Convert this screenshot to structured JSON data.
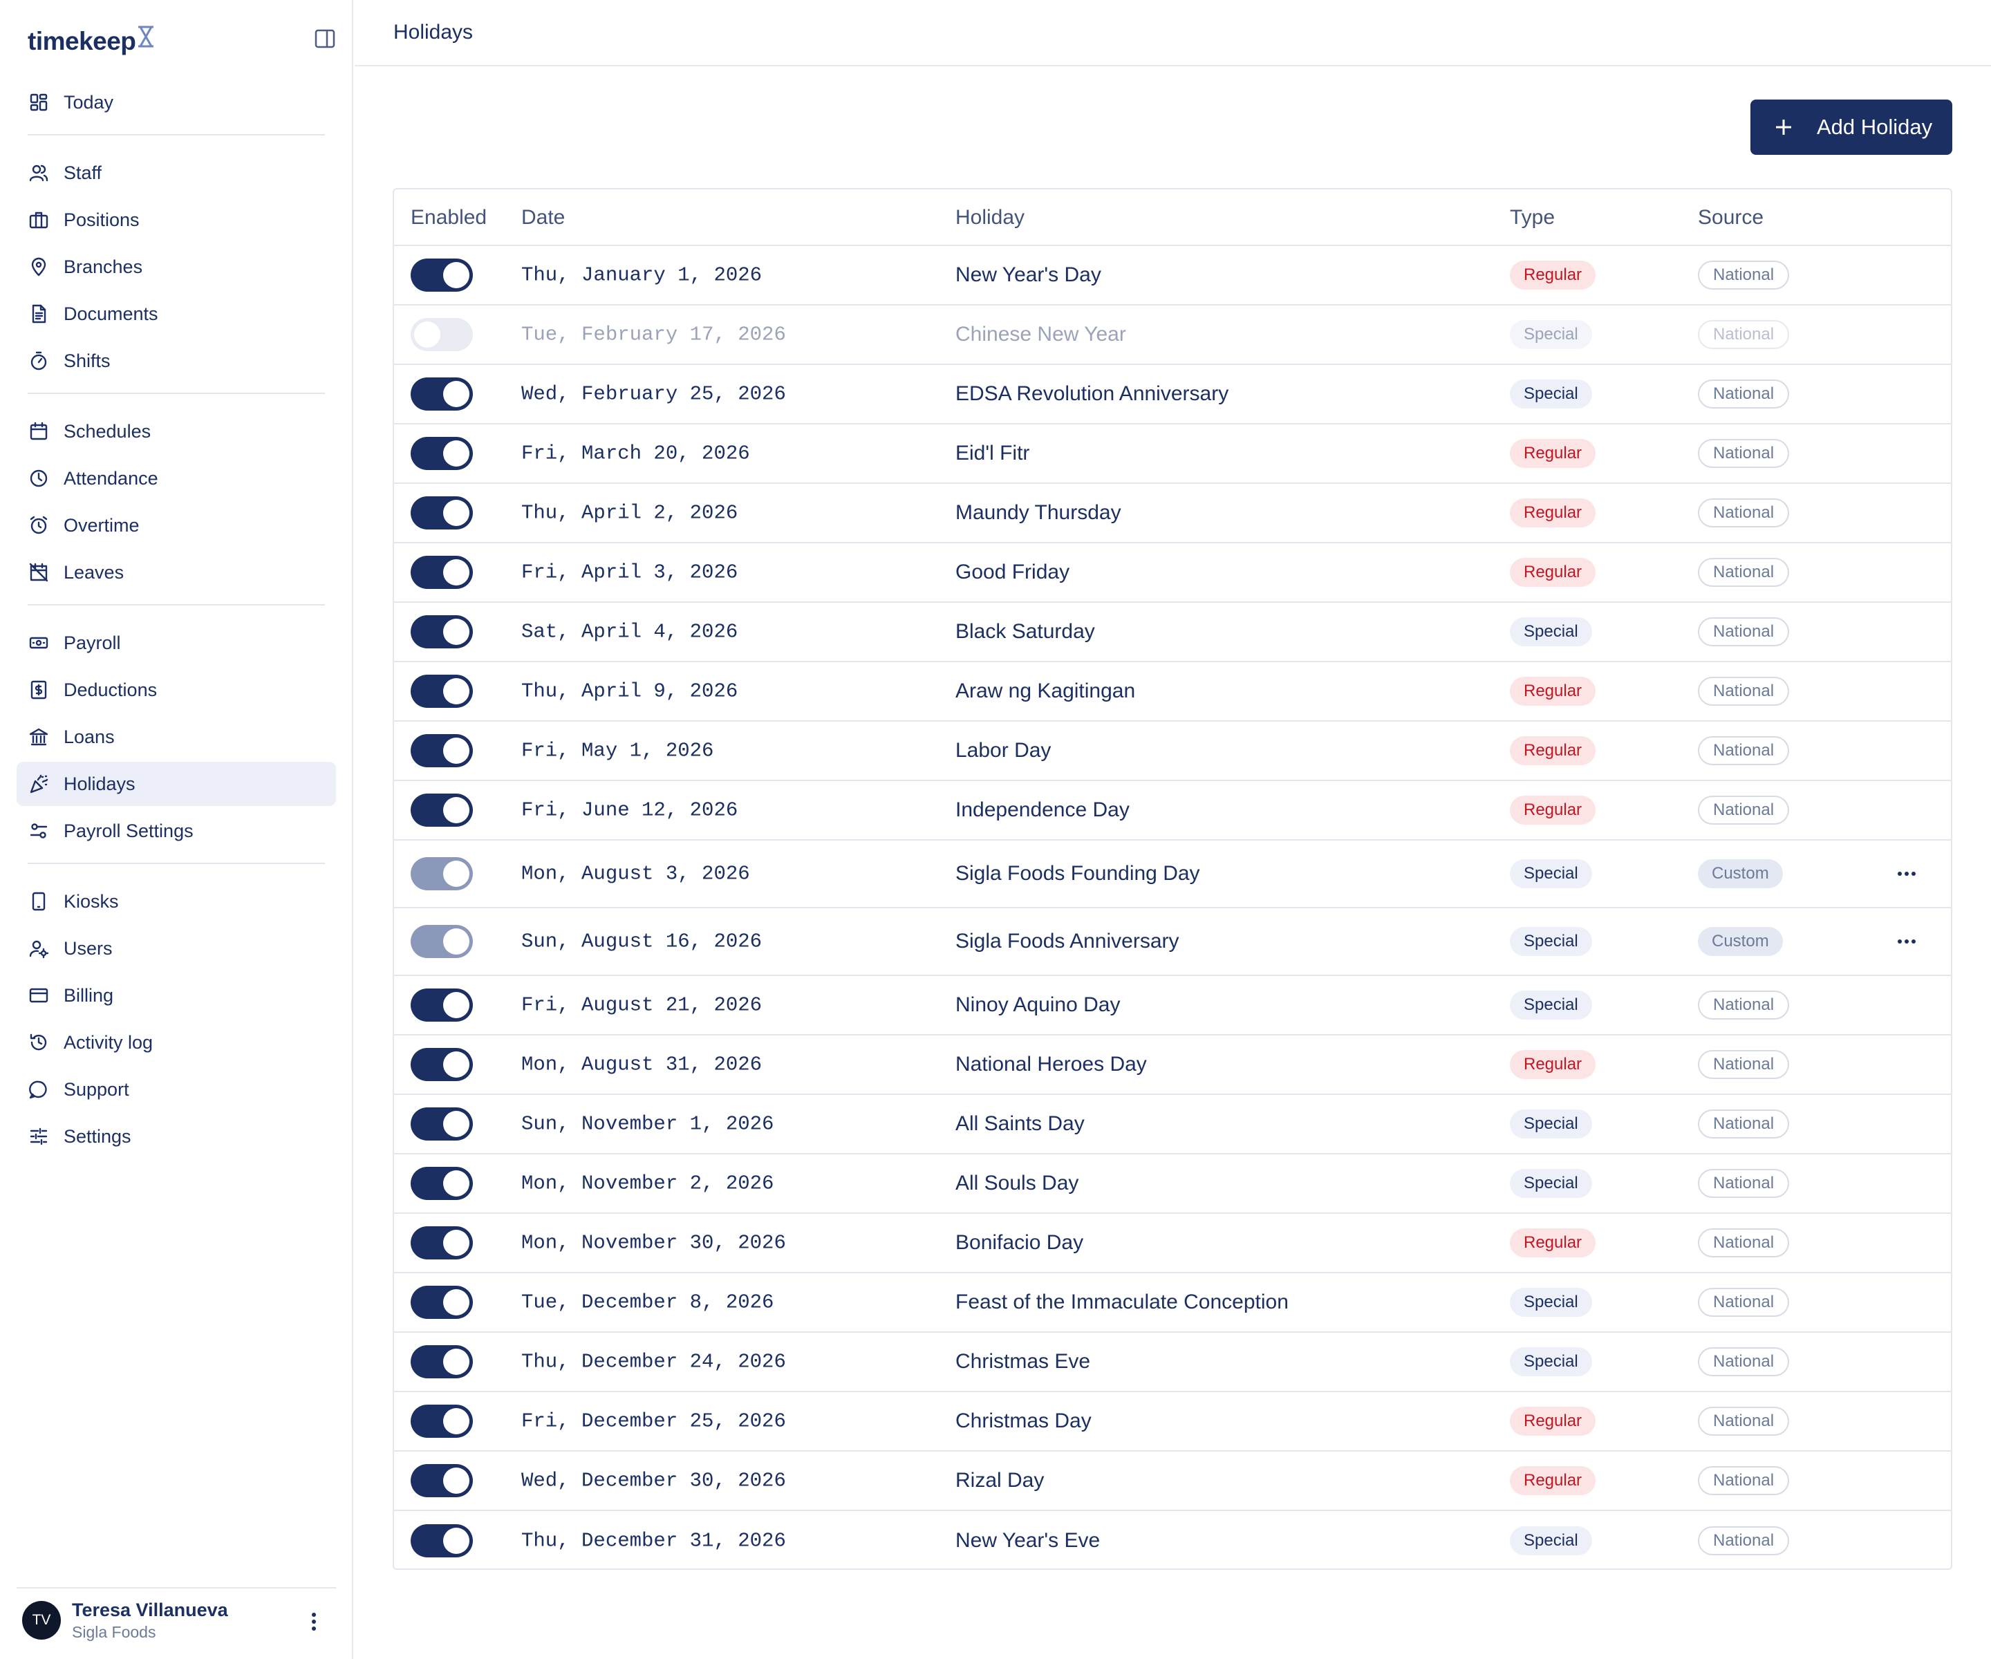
{
  "app": {
    "logo": "timekeep"
  },
  "sidebar": {
    "groups": [
      [
        {
          "label": "Today",
          "icon": "dashboard-icon"
        }
      ],
      [
        {
          "label": "Staff",
          "icon": "users-icon"
        },
        {
          "label": "Positions",
          "icon": "briefcase-icon"
        },
        {
          "label": "Branches",
          "icon": "map-pin-icon"
        },
        {
          "label": "Documents",
          "icon": "document-icon"
        },
        {
          "label": "Shifts",
          "icon": "timer-icon"
        }
      ],
      [
        {
          "label": "Schedules",
          "icon": "calendar-icon"
        },
        {
          "label": "Attendance",
          "icon": "clock-icon"
        },
        {
          "label": "Overtime",
          "icon": "alarm-icon"
        },
        {
          "label": "Leaves",
          "icon": "calendar-off-icon"
        }
      ],
      [
        {
          "label": "Payroll",
          "icon": "banknote-icon"
        },
        {
          "label": "Deductions",
          "icon": "receipt-icon"
        },
        {
          "label": "Loans",
          "icon": "bank-icon"
        },
        {
          "label": "Holidays",
          "icon": "party-icon",
          "active": true
        },
        {
          "label": "Payroll Settings",
          "icon": "sliders-icon"
        }
      ],
      [
        {
          "label": "Kiosks",
          "icon": "tablet-icon"
        },
        {
          "label": "Users",
          "icon": "user-cog-icon"
        },
        {
          "label": "Billing",
          "icon": "credit-card-icon"
        },
        {
          "label": "Activity log",
          "icon": "history-icon"
        },
        {
          "label": "Support",
          "icon": "chat-icon"
        },
        {
          "label": "Settings",
          "icon": "settings-sliders-icon"
        }
      ]
    ],
    "user": {
      "initials": "TV",
      "name": "Teresa Villanueva",
      "org": "Sigla Foods"
    }
  },
  "header": {
    "title": "Holidays"
  },
  "actions": {
    "add_label": "Add Holiday"
  },
  "table": {
    "columns": [
      "Enabled",
      "Date",
      "Holiday",
      "Type",
      "Source"
    ],
    "rows": [
      {
        "enabled": "on",
        "date": "Thu, January 1, 2026",
        "name": "New Year's Day",
        "type": "Regular",
        "source": "National"
      },
      {
        "enabled": "off",
        "date": "Tue, February 17, 2026",
        "name": "Chinese New Year",
        "type": "Special",
        "source": "National"
      },
      {
        "enabled": "on",
        "date": "Wed, February 25, 2026",
        "name": "EDSA Revolution Anniversary",
        "type": "Special",
        "source": "National"
      },
      {
        "enabled": "on",
        "date": "Fri, March 20, 2026",
        "name": "Eid'l Fitr",
        "type": "Regular",
        "source": "National"
      },
      {
        "enabled": "on",
        "date": "Thu, April 2, 2026",
        "name": "Maundy Thursday",
        "type": "Regular",
        "source": "National"
      },
      {
        "enabled": "on",
        "date": "Fri, April 3, 2026",
        "name": "Good Friday",
        "type": "Regular",
        "source": "National"
      },
      {
        "enabled": "on",
        "date": "Sat, April 4, 2026",
        "name": "Black Saturday",
        "type": "Special",
        "source": "National"
      },
      {
        "enabled": "on",
        "date": "Thu, April 9, 2026",
        "name": "Araw ng Kagitingan",
        "type": "Regular",
        "source": "National"
      },
      {
        "enabled": "on",
        "date": "Fri, May 1, 2026",
        "name": "Labor Day",
        "type": "Regular",
        "source": "National"
      },
      {
        "enabled": "on",
        "date": "Fri, June 12, 2026",
        "name": "Independence Day",
        "type": "Regular",
        "source": "National"
      },
      {
        "enabled": "custom",
        "date": "Mon, August 3, 2026",
        "name": "Sigla Foods Founding Day",
        "type": "Special",
        "source": "Custom"
      },
      {
        "enabled": "custom",
        "date": "Sun, August 16, 2026",
        "name": "Sigla Foods Anniversary",
        "type": "Special",
        "source": "Custom"
      },
      {
        "enabled": "on",
        "date": "Fri, August 21, 2026",
        "name": "Ninoy Aquino Day",
        "type": "Special",
        "source": "National"
      },
      {
        "enabled": "on",
        "date": "Mon, August 31, 2026",
        "name": "National Heroes Day",
        "type": "Regular",
        "source": "National"
      },
      {
        "enabled": "on",
        "date": "Sun, November 1, 2026",
        "name": "All Saints Day",
        "type": "Special",
        "source": "National"
      },
      {
        "enabled": "on",
        "date": "Mon, November 2, 2026",
        "name": "All Souls Day",
        "type": "Special",
        "source": "National"
      },
      {
        "enabled": "on",
        "date": "Mon, November 30, 2026",
        "name": "Bonifacio Day",
        "type": "Regular",
        "source": "National"
      },
      {
        "enabled": "on",
        "date": "Tue, December 8, 2026",
        "name": "Feast of the Immaculate Conception",
        "type": "Special",
        "source": "National"
      },
      {
        "enabled": "on",
        "date": "Thu, December 24, 2026",
        "name": "Christmas Eve",
        "type": "Special",
        "source": "National"
      },
      {
        "enabled": "on",
        "date": "Fri, December 25, 2026",
        "name": "Christmas Day",
        "type": "Regular",
        "source": "National"
      },
      {
        "enabled": "on",
        "date": "Wed, December 30, 2026",
        "name": "Rizal Day",
        "type": "Regular",
        "source": "National"
      },
      {
        "enabled": "on",
        "date": "Thu, December 31, 2026",
        "name": "New Year's Eve",
        "type": "Special",
        "source": "National"
      }
    ]
  },
  "colors": {
    "primary": "#1b2f63",
    "regular_badge": "#c01722",
    "active_bg": "#eceff8"
  }
}
